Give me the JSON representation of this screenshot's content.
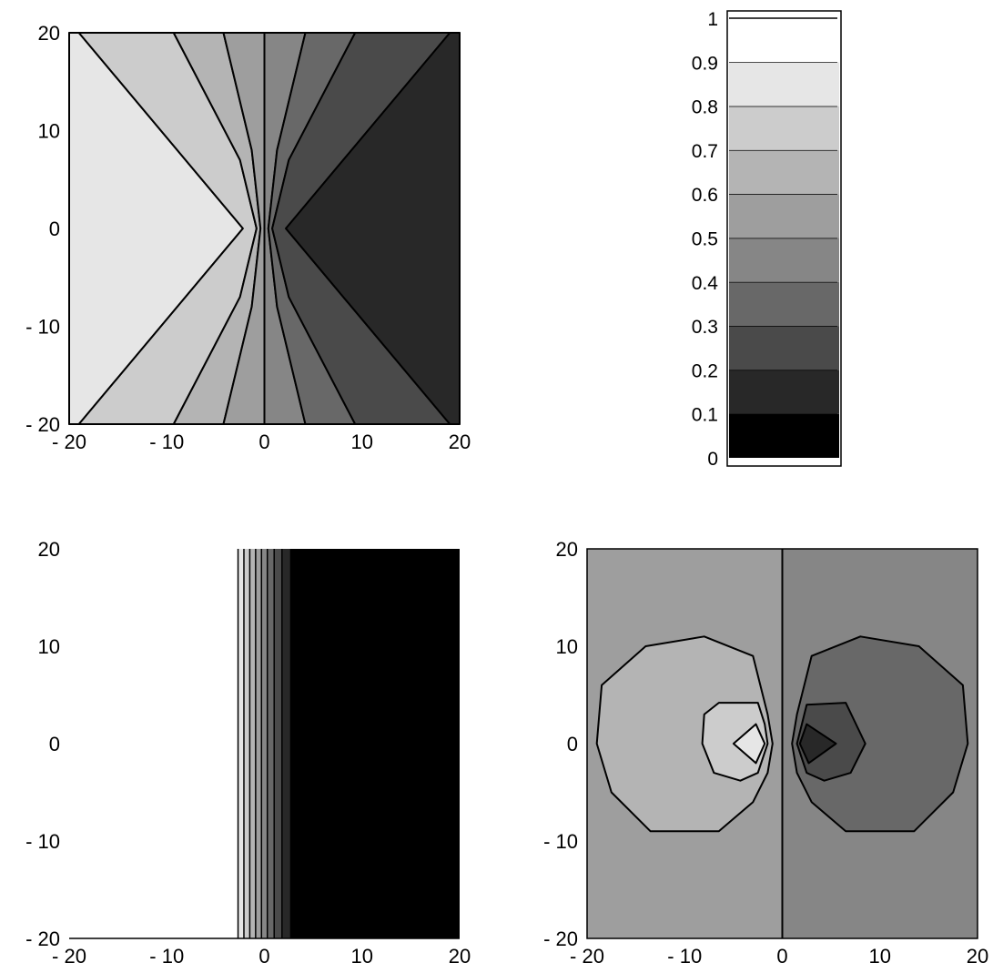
{
  "chart_data": [
    {
      "type": "heatmap",
      "panel": "top-left",
      "description_levels": "filled contour plot",
      "xlim": [
        -20,
        20
      ],
      "ylim": [
        -20,
        20
      ],
      "xticks": [
        "- 20",
        "- 10",
        "0",
        "10",
        "20"
      ],
      "yticks": [
        "20",
        "10",
        "0",
        "- 10",
        "- 20"
      ],
      "regions": [
        {
          "level": 0.85,
          "color": "#e6e6e6",
          "polygon": [
            [
              -20,
              20
            ],
            [
              -19,
              20
            ],
            [
              -2.2,
              0
            ],
            [
              -19,
              -20
            ],
            [
              -20,
              -20
            ]
          ]
        },
        {
          "level": 0.75,
          "color": "#cccccc",
          "polygon": [
            [
              -19,
              20
            ],
            [
              -9.3,
              20
            ],
            [
              -2.5,
              7
            ],
            [
              -0.8,
              0
            ],
            [
              -2.5,
              -7
            ],
            [
              -9.3,
              -20
            ],
            [
              -19,
              -20
            ],
            [
              -2.2,
              0
            ]
          ]
        },
        {
          "level": 0.65,
          "color": "#b4b4b4",
          "polygon": [
            [
              -9.3,
              20
            ],
            [
              -4.2,
              20
            ],
            [
              -1.3,
              8
            ],
            [
              -0.4,
              0
            ],
            [
              -1.3,
              -8
            ],
            [
              -4.2,
              -20
            ],
            [
              -9.3,
              -20
            ],
            [
              -2.5,
              -7
            ],
            [
              -0.8,
              0
            ],
            [
              -2.5,
              7
            ]
          ]
        },
        {
          "level": 0.55,
          "color": "#9e9e9e",
          "polygon": [
            [
              -4.2,
              20
            ],
            [
              0,
              20
            ],
            [
              0,
              -20
            ],
            [
              -4.2,
              -20
            ],
            [
              -1.3,
              -8
            ],
            [
              -0.4,
              0
            ],
            [
              -1.3,
              8
            ]
          ]
        },
        {
          "level": 0.45,
          "color": "#868686",
          "polygon": [
            [
              0,
              20
            ],
            [
              4.2,
              20
            ],
            [
              1.3,
              8
            ],
            [
              0.4,
              0
            ],
            [
              1.3,
              -8
            ],
            [
              4.2,
              -20
            ],
            [
              0,
              -20
            ]
          ]
        },
        {
          "level": 0.35,
          "color": "#686868",
          "polygon": [
            [
              4.2,
              20
            ],
            [
              9.3,
              20
            ],
            [
              2.5,
              7
            ],
            [
              0.8,
              0
            ],
            [
              2.5,
              -7
            ],
            [
              9.3,
              -20
            ],
            [
              4.2,
              -20
            ],
            [
              1.3,
              -8
            ],
            [
              0.4,
              0
            ],
            [
              1.3,
              8
            ]
          ]
        },
        {
          "level": 0.25,
          "color": "#4a4a4a",
          "polygon": [
            [
              9.3,
              20
            ],
            [
              19,
              20
            ],
            [
              2.2,
              0
            ],
            [
              19,
              -20
            ],
            [
              9.3,
              -20
            ],
            [
              2.5,
              -7
            ],
            [
              0.8,
              0
            ],
            [
              2.5,
              7
            ]
          ]
        },
        {
          "level": 0.15,
          "color": "#282828",
          "polygon": [
            [
              19,
              20
            ],
            [
              20,
              20
            ],
            [
              20,
              -20
            ],
            [
              19,
              -20
            ],
            [
              2.2,
              0
            ]
          ]
        }
      ]
    },
    {
      "type": "colorbar",
      "panel": "top-right",
      "ticks": [
        "0",
        "0.1",
        "0.2",
        "0.3",
        "0.4",
        "0.5",
        "0.6",
        "0.7",
        "0.8",
        "0.9",
        "1"
      ],
      "bands": [
        {
          "from": 0.0,
          "to": 0.1,
          "color": "#000000"
        },
        {
          "from": 0.1,
          "to": 0.2,
          "color": "#282828"
        },
        {
          "from": 0.2,
          "to": 0.3,
          "color": "#4a4a4a"
        },
        {
          "from": 0.3,
          "to": 0.4,
          "color": "#686868"
        },
        {
          "from": 0.4,
          "to": 0.5,
          "color": "#868686"
        },
        {
          "from": 0.5,
          "to": 0.6,
          "color": "#9e9e9e"
        },
        {
          "from": 0.6,
          "to": 0.7,
          "color": "#b4b4b4"
        },
        {
          "from": 0.7,
          "to": 0.8,
          "color": "#cccccc"
        },
        {
          "from": 0.8,
          "to": 0.9,
          "color": "#e6e6e6"
        },
        {
          "from": 0.9,
          "to": 1.0,
          "color": "#ffffff"
        }
      ]
    },
    {
      "type": "heatmap",
      "panel": "bottom-left",
      "xlim": [
        -20,
        20
      ],
      "ylim": [
        -20,
        20
      ],
      "xticks": [
        "- 20",
        "- 10",
        "0",
        "10",
        "20"
      ],
      "yticks": [
        "20",
        "10",
        "0",
        "- 10",
        "- 20"
      ],
      "vertical_bands": [
        {
          "x0": -20,
          "x1": -2.7,
          "color": "#ffffff"
        },
        {
          "x0": -2.7,
          "x1": -2.1,
          "color": "#e6e6e6"
        },
        {
          "x0": -2.1,
          "x1": -1.5,
          "color": "#cccccc"
        },
        {
          "x0": -1.5,
          "x1": -0.9,
          "color": "#b4b4b4"
        },
        {
          "x0": -0.9,
          "x1": -0.3,
          "color": "#9e9e9e"
        },
        {
          "x0": -0.3,
          "x1": 0.3,
          "color": "#868686"
        },
        {
          "x0": 0.3,
          "x1": 1.0,
          "color": "#686868"
        },
        {
          "x0": 1.0,
          "x1": 1.8,
          "color": "#4a4a4a"
        },
        {
          "x0": 1.8,
          "x1": 2.7,
          "color": "#282828"
        },
        {
          "x0": 2.7,
          "x1": 20,
          "color": "#000000"
        }
      ]
    },
    {
      "type": "heatmap",
      "panel": "bottom-right",
      "xlim": [
        -20,
        20
      ],
      "ylim": [
        -20,
        20
      ],
      "xticks": [
        "- 20",
        "- 10",
        "0",
        "10",
        "20"
      ],
      "yticks": [
        "20",
        "10",
        "0",
        "- 10",
        "- 20"
      ],
      "background": [
        {
          "x0": -20,
          "x1": 0,
          "color": "#9e9e9e"
        },
        {
          "x0": 0,
          "x1": 20,
          "color": "#868686"
        }
      ],
      "regions": [
        {
          "level": 0.65,
          "color": "#b4b4b4",
          "polygon": [
            [
              -18.5,
              6
            ],
            [
              -14,
              10
            ],
            [
              -8,
              11
            ],
            [
              -3,
              9
            ],
            [
              -1.5,
              3
            ],
            [
              -1,
              0
            ],
            [
              -1.5,
              -3
            ],
            [
              -3,
              -6
            ],
            [
              -6.5,
              -9
            ],
            [
              -13.5,
              -9
            ],
            [
              -17.5,
              -5
            ],
            [
              -19,
              0
            ]
          ]
        },
        {
          "level": 0.75,
          "color": "#cccccc",
          "polygon": [
            [
              -8,
              3
            ],
            [
              -6.5,
              4.2
            ],
            [
              -2.5,
              4.2
            ],
            [
              -1.8,
              2
            ],
            [
              -1.5,
              0
            ],
            [
              -2.5,
              -3
            ],
            [
              -4.3,
              -3.8
            ],
            [
              -7,
              -3
            ],
            [
              -8.2,
              0
            ]
          ]
        },
        {
          "level": 0.85,
          "color": "#e6e6e6",
          "polygon": [
            [
              -5,
              0
            ],
            [
              -2.7,
              2
            ],
            [
              -1.8,
              0
            ],
            [
              -2.7,
              -2
            ]
          ]
        },
        {
          "level": 0.35,
          "color": "#686868",
          "polygon": [
            [
              1.5,
              3
            ],
            [
              3,
              9
            ],
            [
              8,
              11
            ],
            [
              14,
              10
            ],
            [
              18.5,
              6
            ],
            [
              19,
              0
            ],
            [
              17.5,
              -5
            ],
            [
              13.5,
              -9
            ],
            [
              6.5,
              -9
            ],
            [
              3,
              -6
            ],
            [
              1.5,
              -3
            ],
            [
              1,
              0
            ]
          ]
        },
        {
          "level": 0.25,
          "color": "#4a4a4a",
          "polygon": [
            [
              2,
              2
            ],
            [
              2.5,
              4
            ],
            [
              6.5,
              4.2
            ],
            [
              8.5,
              0
            ],
            [
              7,
              -3
            ],
            [
              4.3,
              -3.8
            ],
            [
              2.5,
              -3
            ],
            [
              1.5,
              0
            ]
          ]
        },
        {
          "level": 0.15,
          "color": "#282828",
          "polygon": [
            [
              2.5,
              2
            ],
            [
              5.5,
              0
            ],
            [
              2.7,
              -2
            ],
            [
              1.8,
              0
            ]
          ]
        }
      ],
      "lines": [
        {
          "points": [
            [
              0,
              20
            ],
            [
              0,
              -20
            ]
          ]
        }
      ]
    }
  ]
}
